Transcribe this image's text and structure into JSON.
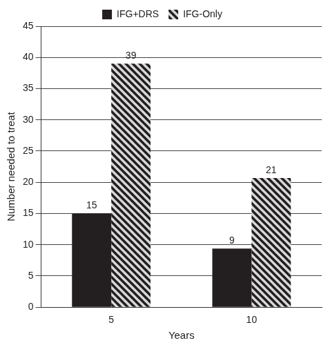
{
  "chart_data": {
    "type": "bar",
    "categories": [
      "5",
      "10"
    ],
    "x_label": "Years",
    "y_label": "Number needed to treat",
    "series": [
      {
        "name": "IFG+DRS",
        "color": "#231f20",
        "values": [
          15,
          9.4
        ],
        "value_labels": [
          "15",
          "9"
        ]
      },
      {
        "name": "IFG-Only",
        "color": "#231f20",
        "values": [
          39,
          20.7
        ],
        "value_labels": [
          "39",
          "21"
        ]
      }
    ],
    "ylim": [
      0,
      45
    ],
    "yticks": [
      0,
      5,
      10,
      15,
      20,
      25,
      30,
      35,
      40,
      45
    ],
    "grid": true,
    "legend": "top",
    "data_labels": true
  }
}
